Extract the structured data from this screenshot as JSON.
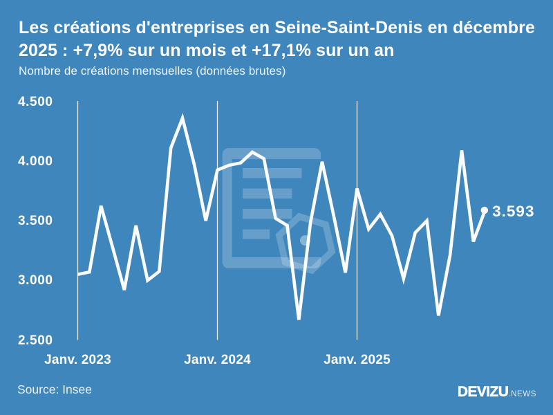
{
  "page": {
    "background_color": "#3e86bc",
    "text_color": "#ffffff"
  },
  "header": {
    "title_lines": [
      "Les créations d'entreprises en Seine-Saint-Denis en décembre",
      "2025 : +7,9% sur un mois et +17,1% sur un an"
    ],
    "subtitle": "Nombre de créations mensuelles (données brutes)"
  },
  "chart_data": {
    "type": "line",
    "title": "Les créations d'entreprises en Seine-Saint-Denis en décembre 2025 : +7,9% sur un mois et +17,1% sur un an",
    "subtitle": "Nombre de créations mensuelles (données brutes)",
    "x": [
      "2023-01",
      "2023-02",
      "2023-03",
      "2023-04",
      "2023-05",
      "2023-06",
      "2023-07",
      "2023-08",
      "2023-09",
      "2023-10",
      "2023-11",
      "2023-12",
      "2024-01",
      "2024-02",
      "2024-03",
      "2024-04",
      "2024-05",
      "2024-06",
      "2024-07",
      "2024-08",
      "2024-09",
      "2024-10",
      "2024-11",
      "2024-12",
      "2025-01",
      "2025-02",
      "2025-03",
      "2025-04",
      "2025-05",
      "2025-06",
      "2025-07",
      "2025-08",
      "2025-09",
      "2025-10",
      "2025-11",
      "2025-12"
    ],
    "values": [
      3055,
      3075,
      3630,
      3280,
      2925,
      3465,
      3005,
      3080,
      4115,
      4365,
      3980,
      3505,
      3930,
      3970,
      3990,
      4080,
      4025,
      3525,
      3465,
      2675,
      3490,
      4000,
      3545,
      3070,
      3775,
      3435,
      3560,
      3380,
      3020,
      3405,
      3505,
      2710,
      3220,
      4095,
      3330,
      3593
    ],
    "ylim": [
      2500,
      4500
    ],
    "y_tick_labels": [
      "4.500",
      "4.000",
      "3.500",
      "3.000",
      "2.500"
    ],
    "y_tick_values": [
      4500,
      4000,
      3500,
      3000,
      2500
    ],
    "x_tick_labels": [
      "Janv. 2023",
      "Janv. 2024",
      "Janv. 2025"
    ],
    "x_tick_indices": [
      0,
      12,
      24
    ],
    "grid": "vertical-only",
    "legend": "none",
    "line_color": "#fbfdff",
    "end_point_label": "3.593",
    "last_value": 3593
  },
  "watermark": {
    "icon": "document-with-hexagon",
    "opacity": 0.16
  },
  "footer": {
    "source": "Source: Insee",
    "logo_main": "DEVIZU",
    "logo_suffix": ".NEWS"
  }
}
